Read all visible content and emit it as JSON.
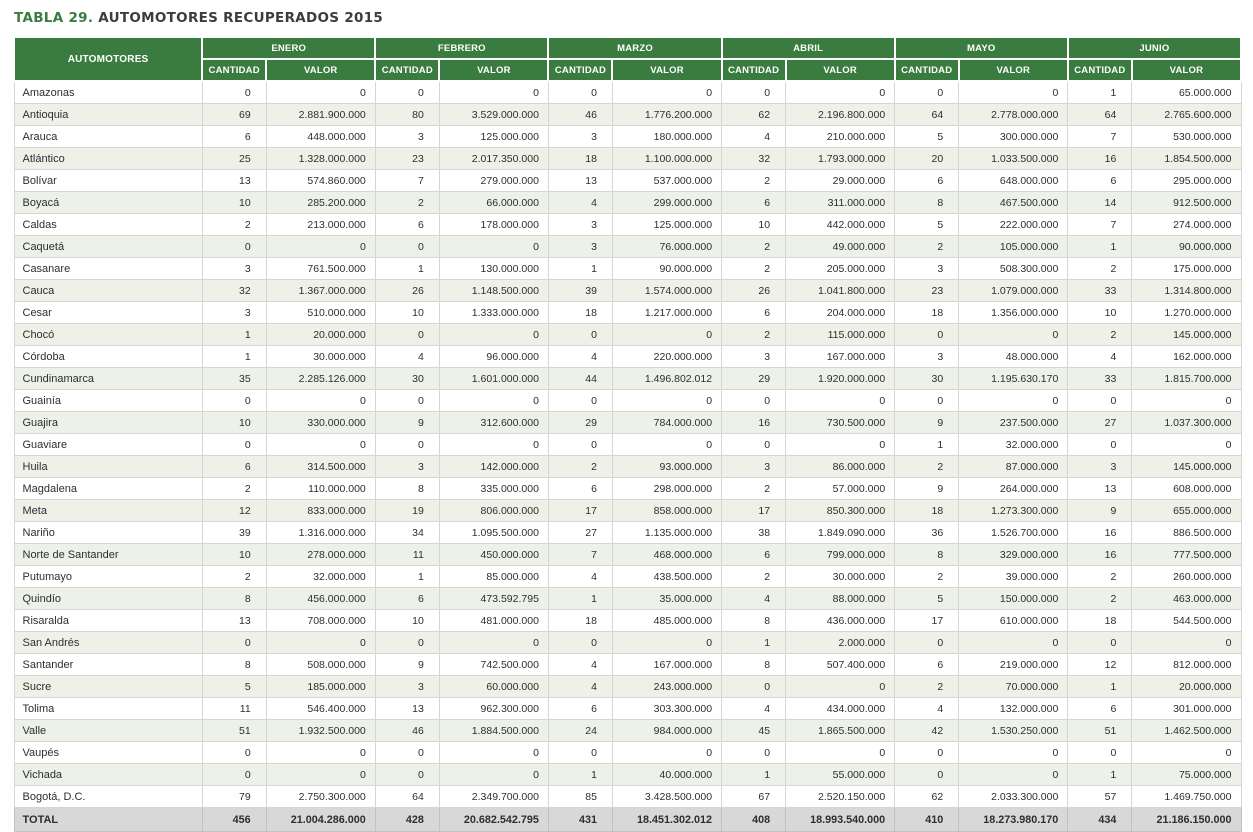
{
  "page": {
    "title_prefix": "TABLA 29.",
    "title_rest": " AUTOMOTORES RECUPERADOS 2015"
  },
  "colors": {
    "header_green": "#3A7C3F",
    "title_green": "#3A7C3F",
    "alt_row_background": "#EDF1E8",
    "total_row_background": "#D8D8D8",
    "grid_line": "#D6D6D6",
    "body_text": "#2E2E2E"
  },
  "chart_data": {
    "type": "table",
    "title": "TABLA 29. AUTOMOTORES RECUPERADOS 2015",
    "corner_header": "AUTOMOTORES",
    "month_groups": [
      "ENERO",
      "FEBRERO",
      "MARZO",
      "ABRIL",
      "MAYO",
      "JUNIO"
    ],
    "sub_columns": [
      "CANTIDAD",
      "VALOR"
    ],
    "rows": [
      {
        "department": "Amazonas",
        "values": [
          "0",
          "0",
          "0",
          "0",
          "0",
          "0",
          "0",
          "0",
          "0",
          "0",
          "1",
          "65.000.000"
        ]
      },
      {
        "department": "Antioquia",
        "values": [
          "69",
          "2.881.900.000",
          "80",
          "3.529.000.000",
          "46",
          "1.776.200.000",
          "62",
          "2.196.800.000",
          "64",
          "2.778.000.000",
          "64",
          "2.765.600.000"
        ]
      },
      {
        "department": "Arauca",
        "values": [
          "6",
          "448.000.000",
          "3",
          "125.000.000",
          "3",
          "180.000.000",
          "4",
          "210.000.000",
          "5",
          "300.000.000",
          "7",
          "530.000.000"
        ]
      },
      {
        "department": "Atlántico",
        "values": [
          "25",
          "1.328.000.000",
          "23",
          "2.017.350.000",
          "18",
          "1.100.000.000",
          "32",
          "1.793.000.000",
          "20",
          "1.033.500.000",
          "16",
          "1.854.500.000"
        ]
      },
      {
        "department": "Bolívar",
        "values": [
          "13",
          "574.860.000",
          "7",
          "279.000.000",
          "13",
          "537.000.000",
          "2",
          "29.000.000",
          "6",
          "648.000.000",
          "6",
          "295.000.000"
        ]
      },
      {
        "department": "Boyacá",
        "values": [
          "10",
          "285.200.000",
          "2",
          "66.000.000",
          "4",
          "299.000.000",
          "6",
          "311.000.000",
          "8",
          "467.500.000",
          "14",
          "912.500.000"
        ]
      },
      {
        "department": "Caldas",
        "values": [
          "2",
          "213.000.000",
          "6",
          "178.000.000",
          "3",
          "125.000.000",
          "10",
          "442.000.000",
          "5",
          "222.000.000",
          "7",
          "274.000.000"
        ]
      },
      {
        "department": "Caquetá",
        "values": [
          "0",
          "0",
          "0",
          "0",
          "3",
          "76.000.000",
          "2",
          "49.000.000",
          "2",
          "105.000.000",
          "1",
          "90.000.000"
        ]
      },
      {
        "department": "Casanare",
        "values": [
          "3",
          "761.500.000",
          "1",
          "130.000.000",
          "1",
          "90.000.000",
          "2",
          "205.000.000",
          "3",
          "508.300.000",
          "2",
          "175.000.000"
        ]
      },
      {
        "department": "Cauca",
        "values": [
          "32",
          "1.367.000.000",
          "26",
          "1.148.500.000",
          "39",
          "1.574.000.000",
          "26",
          "1.041.800.000",
          "23",
          "1.079.000.000",
          "33",
          "1.314.800.000"
        ]
      },
      {
        "department": "Cesar",
        "values": [
          "3",
          "510.000.000",
          "10",
          "1.333.000.000",
          "18",
          "1.217.000.000",
          "6",
          "204.000.000",
          "18",
          "1.356.000.000",
          "10",
          "1.270.000.000"
        ]
      },
      {
        "department": "Chocó",
        "values": [
          "1",
          "20.000.000",
          "0",
          "0",
          "0",
          "0",
          "2",
          "115.000.000",
          "0",
          "0",
          "2",
          "145.000.000"
        ]
      },
      {
        "department": "Córdoba",
        "values": [
          "1",
          "30.000.000",
          "4",
          "96.000.000",
          "4",
          "220.000.000",
          "3",
          "167.000.000",
          "3",
          "48.000.000",
          "4",
          "162.000.000"
        ]
      },
      {
        "department": "Cundinamarca",
        "values": [
          "35",
          "2.285.126.000",
          "30",
          "1.601.000.000",
          "44",
          "1.496.802.012",
          "29",
          "1.920.000.000",
          "30",
          "1.195.630.170",
          "33",
          "1.815.700.000"
        ]
      },
      {
        "department": "Guainía",
        "values": [
          "0",
          "0",
          "0",
          "0",
          "0",
          "0",
          "0",
          "0",
          "0",
          "0",
          "0",
          "0"
        ]
      },
      {
        "department": "Guajira",
        "values": [
          "10",
          "330.000.000",
          "9",
          "312.600.000",
          "29",
          "784.000.000",
          "16",
          "730.500.000",
          "9",
          "237.500.000",
          "27",
          "1.037.300.000"
        ]
      },
      {
        "department": "Guaviare",
        "values": [
          "0",
          "0",
          "0",
          "0",
          "0",
          "0",
          "0",
          "0",
          "1",
          "32.000.000",
          "0",
          "0"
        ]
      },
      {
        "department": "Huila",
        "values": [
          "6",
          "314.500.000",
          "3",
          "142.000.000",
          "2",
          "93.000.000",
          "3",
          "86.000.000",
          "2",
          "87.000.000",
          "3",
          "145.000.000"
        ]
      },
      {
        "department": "Magdalena",
        "values": [
          "2",
          "110.000.000",
          "8",
          "335.000.000",
          "6",
          "298.000.000",
          "2",
          "57.000.000",
          "9",
          "264.000.000",
          "13",
          "608.000.000"
        ]
      },
      {
        "department": "Meta",
        "values": [
          "12",
          "833.000.000",
          "19",
          "806.000.000",
          "17",
          "858.000.000",
          "17",
          "850.300.000",
          "18",
          "1.273.300.000",
          "9",
          "655.000.000"
        ]
      },
      {
        "department": "Nariño",
        "values": [
          "39",
          "1.316.000.000",
          "34",
          "1.095.500.000",
          "27",
          "1.135.000.000",
          "38",
          "1.849.090.000",
          "36",
          "1.526.700.000",
          "16",
          "886.500.000"
        ]
      },
      {
        "department": "Norte de Santander",
        "values": [
          "10",
          "278.000.000",
          "11",
          "450.000.000",
          "7",
          "468.000.000",
          "6",
          "799.000.000",
          "8",
          "329.000.000",
          "16",
          "777.500.000"
        ]
      },
      {
        "department": "Putumayo",
        "values": [
          "2",
          "32.000.000",
          "1",
          "85.000.000",
          "4",
          "438.500.000",
          "2",
          "30.000.000",
          "2",
          "39.000.000",
          "2",
          "260.000.000"
        ]
      },
      {
        "department": "Quindío",
        "values": [
          "8",
          "456.000.000",
          "6",
          "473.592.795",
          "1",
          "35.000.000",
          "4",
          "88.000.000",
          "5",
          "150.000.000",
          "2",
          "463.000.000"
        ]
      },
      {
        "department": "Risaralda",
        "values": [
          "13",
          "708.000.000",
          "10",
          "481.000.000",
          "18",
          "485.000.000",
          "8",
          "436.000.000",
          "17",
          "610.000.000",
          "18",
          "544.500.000"
        ]
      },
      {
        "department": "San Andrés",
        "values": [
          "0",
          "0",
          "0",
          "0",
          "0",
          "0",
          "1",
          "2.000.000",
          "0",
          "0",
          "0",
          "0"
        ]
      },
      {
        "department": "Santander",
        "values": [
          "8",
          "508.000.000",
          "9",
          "742.500.000",
          "4",
          "167.000.000",
          "8",
          "507.400.000",
          "6",
          "219.000.000",
          "12",
          "812.000.000"
        ]
      },
      {
        "department": "Sucre",
        "values": [
          "5",
          "185.000.000",
          "3",
          "60.000.000",
          "4",
          "243.000.000",
          "0",
          "0",
          "2",
          "70.000.000",
          "1",
          "20.000.000"
        ]
      },
      {
        "department": "Tolima",
        "values": [
          "11",
          "546.400.000",
          "13",
          "962.300.000",
          "6",
          "303.300.000",
          "4",
          "434.000.000",
          "4",
          "132.000.000",
          "6",
          "301.000.000"
        ]
      },
      {
        "department": "Valle",
        "values": [
          "51",
          "1.932.500.000",
          "46",
          "1.884.500.000",
          "24",
          "984.000.000",
          "45",
          "1.865.500.000",
          "42",
          "1.530.250.000",
          "51",
          "1.462.500.000"
        ]
      },
      {
        "department": "Vaupés",
        "values": [
          "0",
          "0",
          "0",
          "0",
          "0",
          "0",
          "0",
          "0",
          "0",
          "0",
          "0",
          "0"
        ]
      },
      {
        "department": "Vichada",
        "values": [
          "0",
          "0",
          "0",
          "0",
          "1",
          "40.000.000",
          "1",
          "55.000.000",
          "0",
          "0",
          "1",
          "75.000.000"
        ]
      },
      {
        "department": "Bogotá, D.C.",
        "values": [
          "79",
          "2.750.300.000",
          "64",
          "2.349.700.000",
          "85",
          "3.428.500.000",
          "67",
          "2.520.150.000",
          "62",
          "2.033.300.000",
          "57",
          "1.469.750.000"
        ]
      }
    ],
    "total_row": {
      "department": "TOTAL",
      "values": [
        "456",
        "21.004.286.000",
        "428",
        "20.682.542.795",
        "431",
        "18.451.302.012",
        "408",
        "18.993.540.000",
        "410",
        "18.273.980.170",
        "434",
        "21.186.150.000"
      ]
    }
  }
}
